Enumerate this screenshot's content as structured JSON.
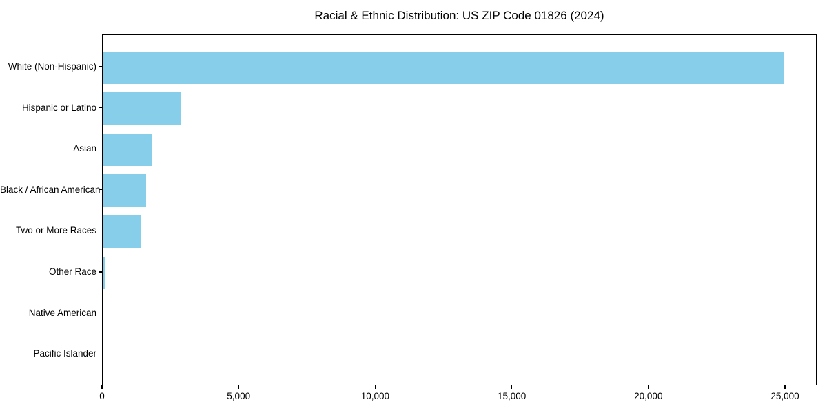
{
  "figure": {
    "background": "#ffffff",
    "text_color": "#000000",
    "axis_color": "#000000"
  },
  "chart_data": {
    "type": "bar",
    "orientation": "horizontal",
    "title": "Racial & Ethnic Distribution: US ZIP Code 01826 (2024)",
    "categories": [
      "White (Non-Hispanic)",
      "Hispanic or Latino",
      "Asian",
      "Black / African American",
      "Two or More Races",
      "Other Race",
      "Native American",
      "Pacific Islander"
    ],
    "values": [
      24950,
      2840,
      1820,
      1590,
      1390,
      100,
      20,
      10
    ],
    "xlabel": "",
    "ylabel": "",
    "xlim": [
      0,
      26160
    ],
    "x_ticks": [
      0,
      5000,
      10000,
      15000,
      20000,
      25000
    ],
    "x_tick_labels": [
      "0",
      "5,000",
      "10,000",
      "15,000",
      "20,000",
      "25,000"
    ],
    "bar_color": "#87CEEB",
    "grid": false,
    "legend": null,
    "category_axis_inverted_note": "largest value at top"
  }
}
